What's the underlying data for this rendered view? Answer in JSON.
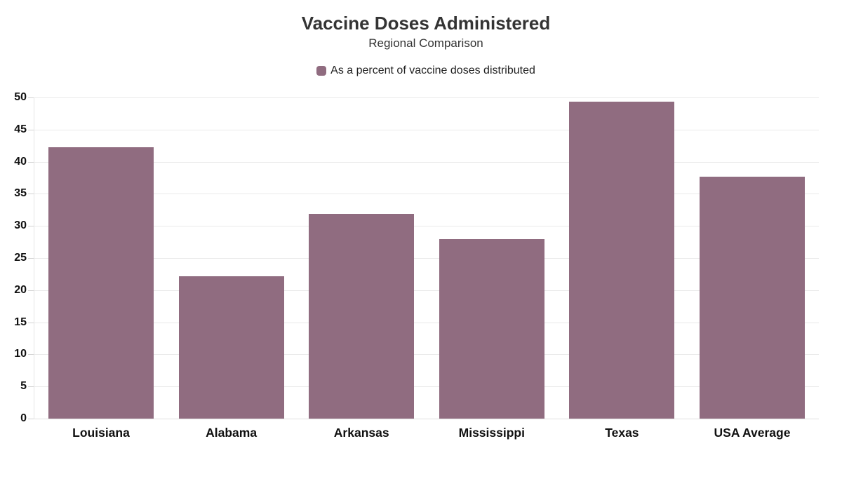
{
  "header": {
    "title": "Vaccine Doses Administered",
    "subtitle": "Regional Comparison"
  },
  "legend": {
    "label": "As a percent of vaccine doses distributed",
    "swatch_color": "#906c80"
  },
  "colors": {
    "bar": "#906c80",
    "grid": "#e9e9e9",
    "text": "#111111",
    "title_text": "#343434"
  },
  "chart_data": {
    "type": "bar",
    "title": "Vaccine Doses Administered",
    "subtitle": "Regional Comparison",
    "legend_entries": [
      "As a percent of vaccine doses distributed"
    ],
    "legend_position": "top-center",
    "categories": [
      "Louisiana",
      "Alabama",
      "Arkansas",
      "Mississippi",
      "Texas",
      "USA Average"
    ],
    "values": [
      42.3,
      22.2,
      31.9,
      28.0,
      49.3,
      37.7
    ],
    "series_name": "As a percent of vaccine doses distributed",
    "xlabel": "",
    "ylabel": "",
    "ylim": [
      0,
      50
    ],
    "ytick_step": 5,
    "yticks": [
      0,
      5,
      10,
      15,
      20,
      25,
      30,
      35,
      40,
      45,
      50
    ],
    "grid": true,
    "bar_color": "#906c80"
  }
}
